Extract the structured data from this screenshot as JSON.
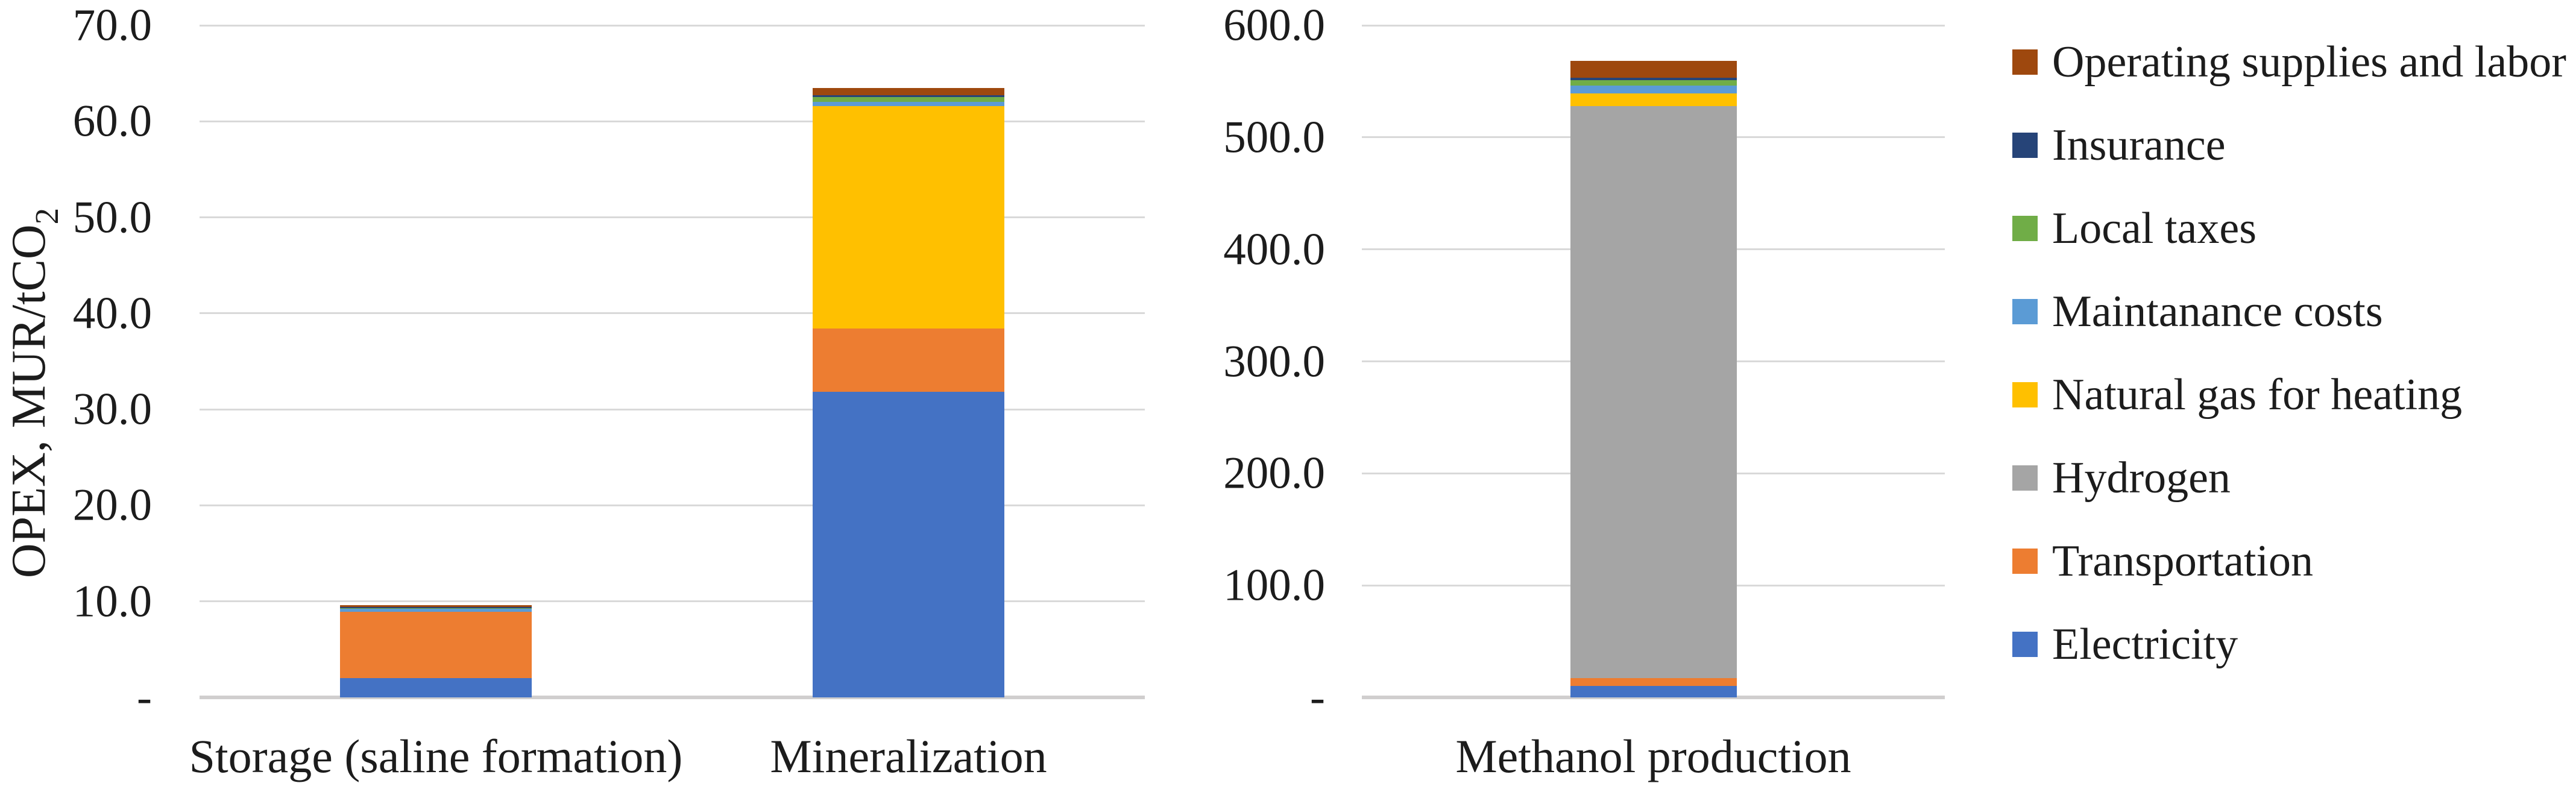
{
  "figure": {
    "y_axis_title": {
      "text": "OPEX, MUR/tCO",
      "subscript": "2"
    }
  },
  "chart_data": [
    {
      "type": "bar",
      "stacked": true,
      "title": "",
      "categories": [
        "Storage (saline formation)",
        "Mineralization"
      ],
      "xlabel": "",
      "ylabel": "OPEX, MUR/tCO2",
      "ylim": [
        0,
        70
      ],
      "ytick_step": 10,
      "yticklabels": [
        "-",
        "10.0",
        "20.0",
        "30.0",
        "40.0",
        "50.0",
        "60.0",
        "70.0"
      ],
      "grid": true,
      "legend_position": "none",
      "series": [
        {
          "name": "Electricity",
          "color": "#4472C4",
          "values": [
            2.0,
            31.8
          ]
        },
        {
          "name": "Transportation",
          "color": "#ED7D31",
          "values": [
            6.9,
            6.6
          ]
        },
        {
          "name": "Hydrogen",
          "color": "#A5A5A5",
          "values": [
            0.0,
            0.0
          ]
        },
        {
          "name": "Natural gas for heating",
          "color": "#FFC000",
          "values": [
            0.0,
            23.2
          ]
        },
        {
          "name": "Maintanance costs",
          "color": "#5B9BD5",
          "values": [
            0.3,
            0.4
          ]
        },
        {
          "name": "Local taxes",
          "color": "#70AD47",
          "values": [
            0.1,
            0.5
          ]
        },
        {
          "name": "Insurance",
          "color": "#264478",
          "values": [
            0.1,
            0.2
          ]
        },
        {
          "name": "Operating supplies and labor",
          "color": "#9E480E",
          "values": [
            0.2,
            0.8
          ]
        }
      ]
    },
    {
      "type": "bar",
      "stacked": true,
      "title": "",
      "categories": [
        "Methanol production"
      ],
      "xlabel": "",
      "ylabel": "",
      "ylim": [
        0,
        600
      ],
      "ytick_step": 100,
      "yticklabels": [
        "-",
        "100.0",
        "200.0",
        "300.0",
        "400.0",
        "500.0",
        "600.0"
      ],
      "grid": true,
      "legend_position": "right",
      "series": [
        {
          "name": "Electricity",
          "color": "#4472C4",
          "values": [
            10.0
          ]
        },
        {
          "name": "Transportation",
          "color": "#ED7D31",
          "values": [
            7.0
          ]
        },
        {
          "name": "Hydrogen",
          "color": "#A5A5A5",
          "values": [
            511.0
          ]
        },
        {
          "name": "Natural gas for heating",
          "color": "#FFC000",
          "values": [
            11.0
          ]
        },
        {
          "name": "Maintanance costs",
          "color": "#5B9BD5",
          "values": [
            7.0
          ]
        },
        {
          "name": "Local taxes",
          "color": "#70AD47",
          "values": [
            5.0
          ]
        },
        {
          "name": "Insurance",
          "color": "#264478",
          "values": [
            2.0
          ]
        },
        {
          "name": "Operating supplies and labor",
          "color": "#9E480E",
          "values": [
            15.0
          ]
        }
      ]
    }
  ],
  "legend": {
    "items": [
      "Operating supplies and labor",
      "Insurance",
      "Local taxes",
      "Maintanance costs",
      "Natural gas for heating",
      "Hydrogen",
      "Transportation",
      "Electricity"
    ]
  },
  "style": {
    "gridline_color": "#D9D9D9",
    "background_color": "#FFFFFF",
    "text_color": "#1C1C1C"
  }
}
